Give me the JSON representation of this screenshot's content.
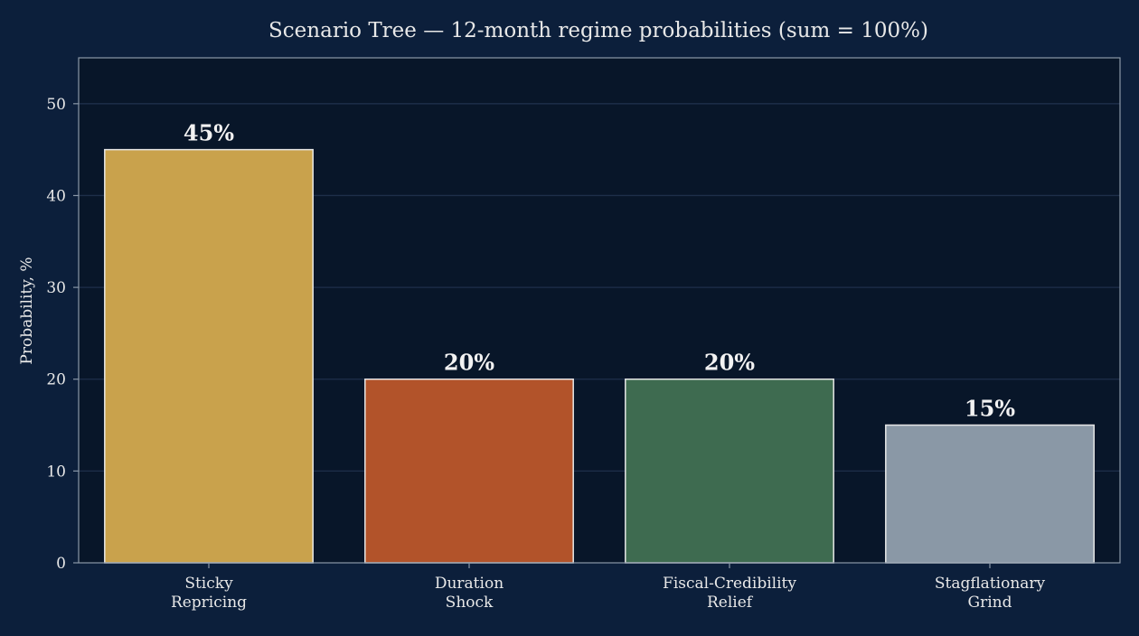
{
  "chart_data": {
    "type": "bar",
    "title": "Scenario Tree — 12-month regime probabilities (sum = 100%)",
    "xlabel": "",
    "ylabel": "Probability, %",
    "ylim": [
      0,
      55
    ],
    "yticks": [
      0,
      10,
      20,
      30,
      40,
      50
    ],
    "grid": true,
    "categories": [
      "Sticky\nRepricing",
      "Duration\nShock",
      "Fiscal-Credibility\nRelief",
      "Stagflationary\nGrind"
    ],
    "values": [
      45,
      20,
      20,
      15
    ],
    "value_labels": [
      "45%",
      "20%",
      "20%",
      "15%"
    ],
    "colors": [
      "#c9a24c",
      "#b2532a",
      "#3e6b50",
      "#8a98a6"
    ]
  },
  "colors": {
    "background": "#0c1f3b",
    "plot_background": "#081629",
    "grid": "#1e2f4a",
    "text": "#e8e8e8",
    "axis": "#8a98a8"
  }
}
